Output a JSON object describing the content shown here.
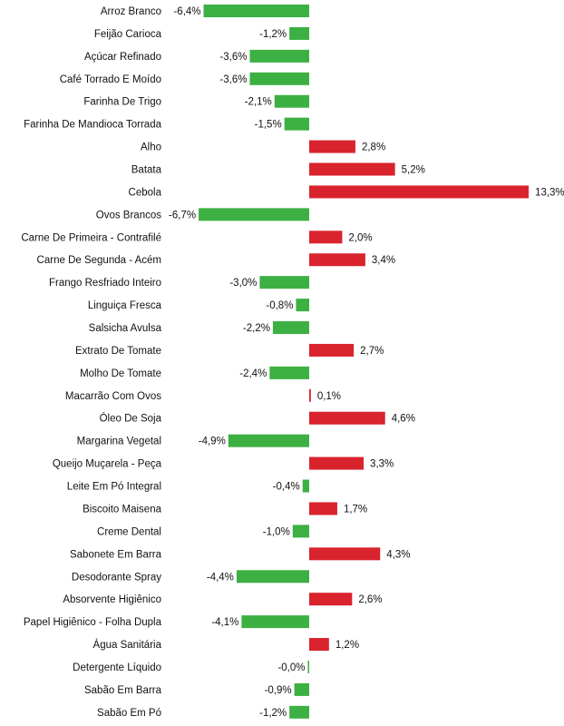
{
  "chart_data": {
    "type": "bar",
    "orientation": "horizontal",
    "title": "",
    "xlabel": "",
    "ylabel": "",
    "grid": false,
    "legend": "none",
    "colors": {
      "positive": "#d9232d",
      "negative": "#3cb043"
    },
    "xlim": [
      -7.0,
      13.5
    ],
    "categories": [
      "Arroz Branco",
      "Feijão Carioca",
      "Açúcar Refinado",
      "Café Torrado E Moído",
      "Farinha De Trigo",
      "Farinha De Mandioca Torrada",
      "Alho",
      "Batata",
      "Cebola",
      "Ovos Brancos",
      "Carne De Primeira - Contrafilé",
      "Carne De Segunda - Acém",
      "Frango Resfriado Inteiro",
      "Linguiça Fresca",
      "Salsicha Avulsa",
      "Extrato De Tomate",
      "Molho De Tomate",
      "Macarrão Com Ovos",
      "Óleo De Soja",
      "Margarina Vegetal",
      "Queijo Muçarela - Peça",
      "Leite Em Pó Integral",
      "Biscoito Maisena",
      "Creme Dental",
      "Sabonete Em Barra",
      "Desodorante Spray",
      "Absorvente Higiênico",
      "Papel Higiênico - Folha Dupla",
      "Água Sanitária",
      "Detergente Líquido",
      "Sabão Em Barra",
      "Sabão Em Pó"
    ],
    "values": [
      -6.4,
      -1.2,
      -3.6,
      -3.6,
      -2.1,
      -1.5,
      2.8,
      5.2,
      13.3,
      -6.7,
      2.0,
      3.4,
      -3.0,
      -0.8,
      -2.2,
      2.7,
      -2.4,
      0.1,
      4.6,
      -4.9,
      3.3,
      -0.4,
      1.7,
      -1.0,
      4.3,
      -4.4,
      2.6,
      -4.1,
      1.2,
      -0.0,
      -0.9,
      -1.2
    ],
    "value_labels": [
      "-6,4%",
      "-1,2%",
      "-3,6%",
      "-3,6%",
      "-2,1%",
      "-1,5%",
      "2,8%",
      "5,2%",
      "13,3%",
      "-6,7%",
      "2,0%",
      "3,4%",
      "-3,0%",
      "-0,8%",
      "-2,2%",
      "2,7%",
      "-2,4%",
      "0,1%",
      "4,6%",
      "-4,9%",
      "3,3%",
      "-0,4%",
      "1,7%",
      "-1,0%",
      "4,3%",
      "-4,4%",
      "2,6%",
      "-4,1%",
      "1,2%",
      "-0,0%",
      "-0,9%",
      "-1,2%"
    ]
  }
}
